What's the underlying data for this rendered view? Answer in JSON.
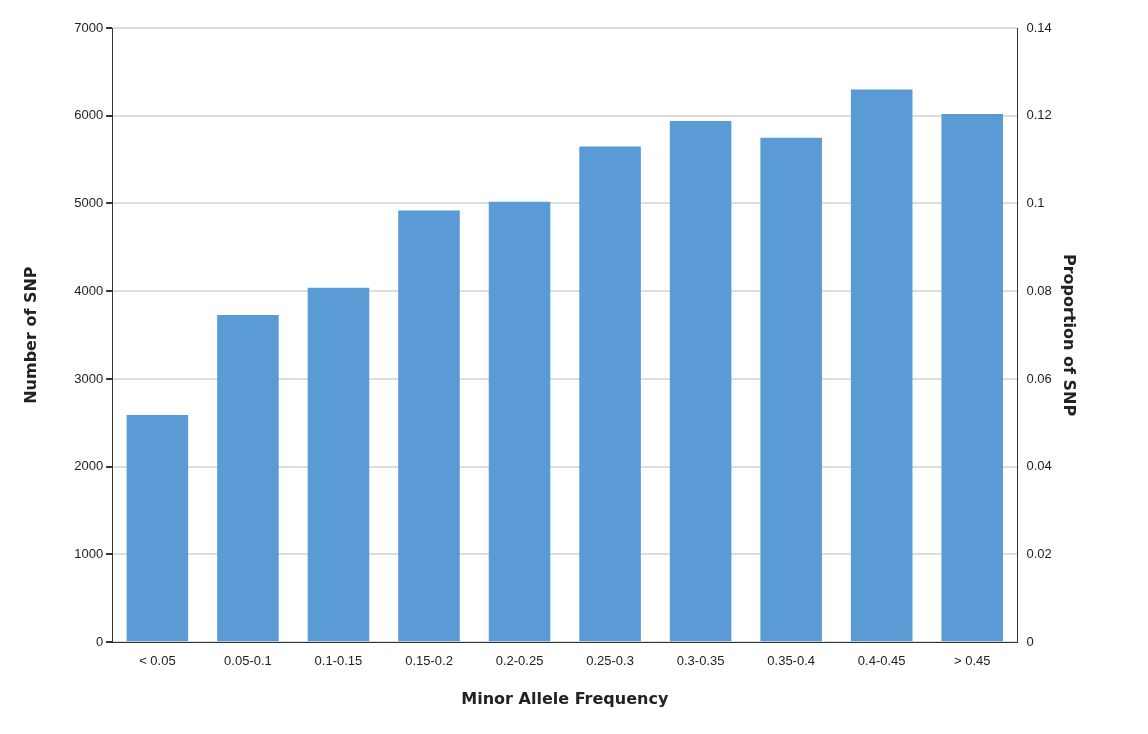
{
  "chart_data": {
    "type": "bar",
    "xlabel": "Minor Allele Frequency",
    "ylabel": "Number of SNP",
    "y2label": "Proportion of SNP",
    "categories": [
      "< 0.05",
      "0.05-0.1",
      "0.1-0.15",
      "0.15-0.2",
      "0.2-0.25",
      "0.25-0.3",
      "0.3-0.35",
      "0.35-0.4",
      "0.4-0.45",
      "> 0.45"
    ],
    "values": [
      2590,
      3730,
      4040,
      4920,
      5020,
      5650,
      5940,
      5750,
      6300,
      6020
    ],
    "color": "#5b9bd5",
    "ylim": [
      0,
      7000
    ],
    "yticks": [
      0,
      1000,
      2000,
      3000,
      4000,
      5000,
      6000,
      7000
    ],
    "y2lim": [
      0,
      0.14
    ],
    "y2ticks": [
      0,
      0.02,
      0.04,
      0.06,
      0.08,
      0.1,
      0.12,
      0.14
    ],
    "grid": "y",
    "legend": false
  }
}
